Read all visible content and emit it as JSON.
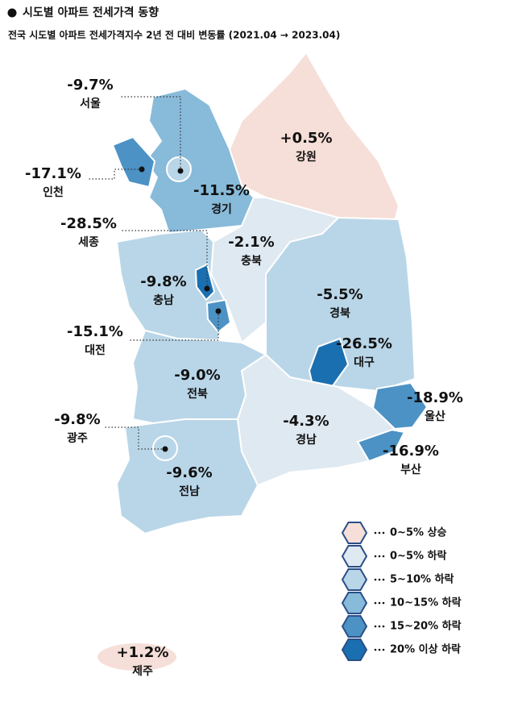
{
  "header": {
    "title": "시도별 아파트 전세가격 동향",
    "subtitle": "전국 시도별 아파트 전세가격지수 2년 전 대비 변동률 (2021.04 → 2023.04)"
  },
  "regions": [
    {
      "name": "강원",
      "label": "+0.5%",
      "color": "#f6dfd8"
    },
    {
      "name": "경기",
      "label": "-11.5%",
      "color": "#88bad9"
    },
    {
      "name": "서울",
      "label": "-9.7%",
      "color": "#b9d6e8"
    },
    {
      "name": "인천",
      "label": "-17.1%",
      "color": "#4c92c5"
    },
    {
      "name": "충북",
      "label": "-2.1%",
      "color": "#dfe9f1"
    },
    {
      "name": "충남",
      "label": "-9.8%",
      "color": "#b9d6e8"
    },
    {
      "name": "세종",
      "label": "-28.5%",
      "color": "#1a6fb0"
    },
    {
      "name": "대전",
      "label": "-15.1%",
      "color": "#4c92c5"
    },
    {
      "name": "경북",
      "label": "-5.5%",
      "color": "#b9d6e8"
    },
    {
      "name": "대구",
      "label": "-26.5%",
      "color": "#1a6fb0"
    },
    {
      "name": "울산",
      "label": "-18.9%",
      "color": "#4c92c5"
    },
    {
      "name": "부산",
      "label": "-16.9%",
      "color": "#4c92c5"
    },
    {
      "name": "경남",
      "label": "-4.3%",
      "color": "#dfe9f1"
    },
    {
      "name": "전북",
      "label": "-9.0%",
      "color": "#b9d6e8"
    },
    {
      "name": "전남",
      "label": "-9.6%",
      "color": "#b9d6e8"
    },
    {
      "name": "광주",
      "label": "-9.8%",
      "color": "#b9d6e8"
    },
    {
      "name": "제주",
      "label": "+1.2%",
      "color": "#f6dfd8"
    }
  ],
  "legend": [
    {
      "label": "0~5% 상승",
      "color": "#f6dfd8"
    },
    {
      "label": "0~5% 하락",
      "color": "#dfe9f1"
    },
    {
      "label": "5~10% 하락",
      "color": "#b9d6e8"
    },
    {
      "label": "10~15% 하락",
      "color": "#88bad9"
    },
    {
      "label": "15~20% 하락",
      "color": "#4c92c5"
    },
    {
      "label": "20% 이상 하락",
      "color": "#1a6fb0"
    }
  ]
}
